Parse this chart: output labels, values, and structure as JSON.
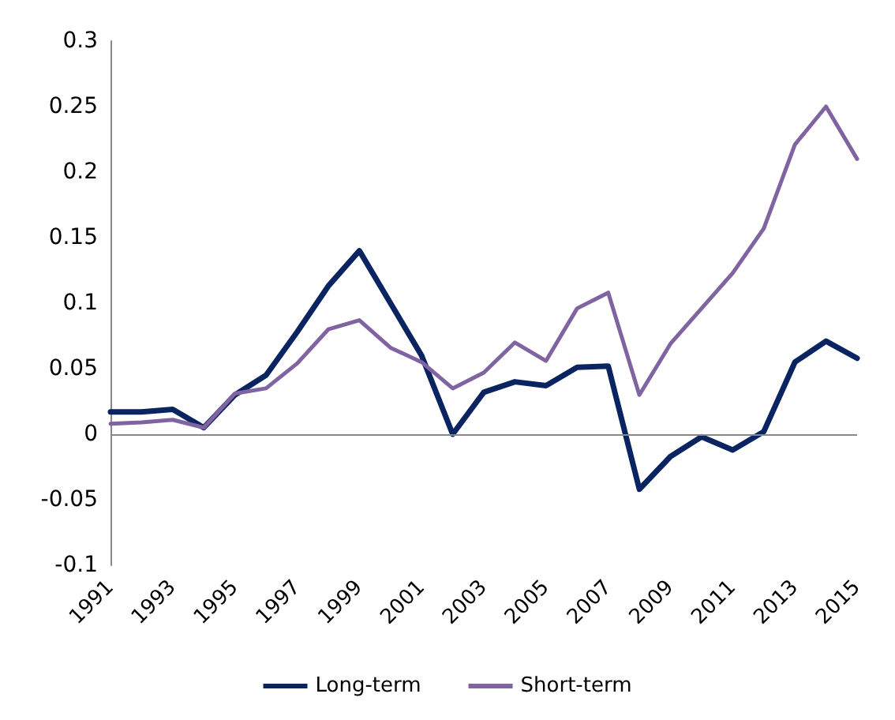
{
  "chart_data": {
    "type": "line",
    "categories": [
      "1991",
      null,
      "1993",
      null,
      "1995",
      null,
      "1997",
      null,
      "1999",
      null,
      "2001",
      null,
      "2003",
      null,
      "2005",
      null,
      "2007",
      null,
      "2009",
      null,
      "2011",
      null,
      "2013",
      null,
      "2015"
    ],
    "series": [
      {
        "name": "Long-term",
        "color": "#0a2461",
        "values": [
          0.017,
          0.017,
          0.019,
          0.005,
          0.03,
          0.045,
          0.078,
          0.113,
          0.14,
          0.1,
          0.06,
          0,
          0.032,
          0.04,
          0.037,
          0.051,
          0.052,
          -0.042,
          -0.017,
          -0.002,
          -0.012,
          0.002,
          0.055,
          0.071,
          0.058
        ]
      },
      {
        "name": "Short-term",
        "color": "#8064a2",
        "values": [
          0.008,
          0.009,
          0.011,
          0.005,
          0.031,
          0.035,
          0.054,
          0.08,
          0.087,
          0.066,
          0.055,
          0.035,
          0.047,
          0.07,
          0.056,
          0.096,
          0.108,
          0.03,
          0.069,
          0.096,
          0.123,
          0.157,
          0.221,
          0.25,
          0.21
        ]
      }
    ],
    "ylim": [
      -0.1,
      0.3
    ],
    "yticks": [
      -0.1,
      -0.05,
      0,
      0.05,
      0.1,
      0.15,
      0.2,
      0.25,
      0.3
    ],
    "ref_lines": [
      {
        "axis": "y",
        "value": 0,
        "color": "#888888",
        "line_style": "solid"
      }
    ],
    "grid": false,
    "legend": "bottom",
    "marker": "none",
    "line_style": "solid"
  }
}
